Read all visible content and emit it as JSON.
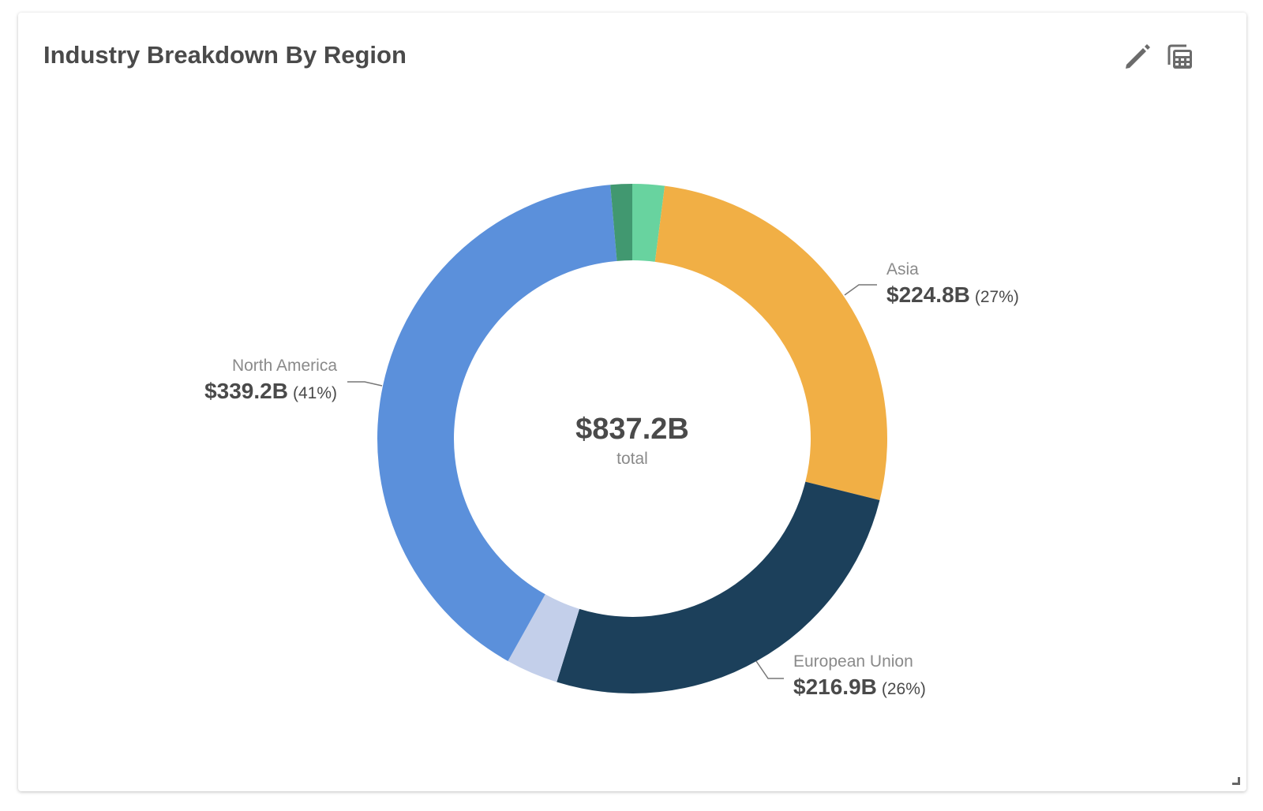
{
  "card": {
    "title": "Industry Breakdown By Region",
    "actions": [
      {
        "name": "edit",
        "icon": "pencil-icon"
      },
      {
        "name": "table-view",
        "icon": "calculator-icon"
      }
    ]
  },
  "chart_data": {
    "type": "pie",
    "variant": "donut",
    "title": "Industry Breakdown By Region",
    "center": {
      "value": "$837.2B",
      "label": "total"
    },
    "slices": [
      {
        "name": "",
        "value": 17.0,
        "color": "#68d39f",
        "labeled": false
      },
      {
        "name": "Asia",
        "value": 224.8,
        "display": "$224.8B",
        "pct": "(27%)",
        "color": "#f1af45",
        "labeled": true
      },
      {
        "name": "European Union",
        "value": 216.9,
        "display": "$216.9B",
        "pct": "(26%)",
        "color": "#1c405b",
        "labeled": true
      },
      {
        "name": "",
        "value": 27.8,
        "color": "#c3cfea",
        "labeled": false
      },
      {
        "name": "North America",
        "value": 339.2,
        "display": "$339.2B",
        "pct": "(41%)",
        "color": "#5b90db",
        "labeled": true
      },
      {
        "name": "",
        "value": 11.5,
        "color": "#419870",
        "labeled": false
      }
    ]
  }
}
